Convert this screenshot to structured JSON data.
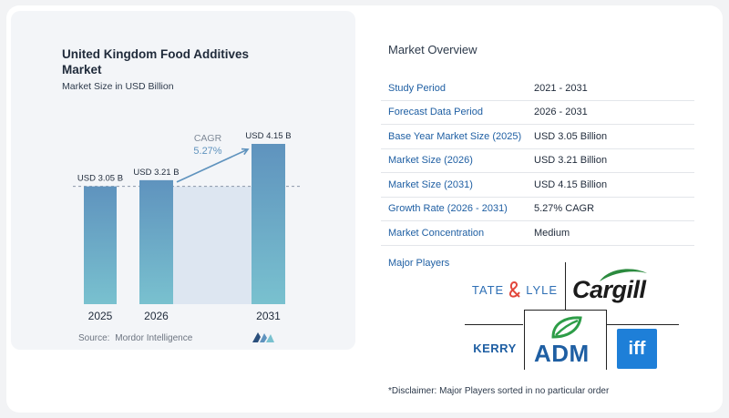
{
  "chart_data": {
    "type": "bar",
    "title": "United Kingdom Food Additives Market",
    "subtitle": "Market Size in USD Billion",
    "categories": [
      "2025",
      "2026",
      "2031"
    ],
    "values": [
      3.05,
      3.21,
      4.15
    ],
    "data_labels": [
      "USD 3.05 B",
      "USD 3.21 B",
      "USD 4.15 B"
    ],
    "ylim": [
      0,
      4.15
    ],
    "annotation": {
      "label": "CAGR",
      "value": "5.27%"
    },
    "reference_line": 3.05,
    "grid": false,
    "colors": {
      "bar_top": "#5f93be",
      "bar_bottom": "#79c1cf",
      "arrow": "#5f93be",
      "band": "#dde6f1"
    }
  },
  "source": {
    "label": "Source:",
    "name": "Mordor Intelligence"
  },
  "overview": {
    "title": "Market Overview",
    "rows": [
      {
        "key": "Study Period",
        "value": "2021 - 2031"
      },
      {
        "key": "Forecast Data Period",
        "value": "2026 - 2031"
      },
      {
        "key": "Base Year Market Size (2025)",
        "value": "USD 3.05 Billion"
      },
      {
        "key": "Market Size (2026)",
        "value": "USD 3.21 Billion"
      },
      {
        "key": "Market Size (2031)",
        "value": "USD 4.15 Billion"
      },
      {
        "key": "Growth Rate (2026 - 2031)",
        "value": "5.27% CAGR"
      },
      {
        "key": "Market Concentration",
        "value": "Medium"
      }
    ]
  },
  "players": {
    "title": "Major Players",
    "logos": {
      "tate1": "TATE",
      "tate2": "LYLE",
      "cargill": "Cargill",
      "kerry": "KERRY",
      "adm": "ADM",
      "iff": "iff"
    }
  },
  "disclaimer": "*Disclaimer: Major Players sorted in no particular order"
}
